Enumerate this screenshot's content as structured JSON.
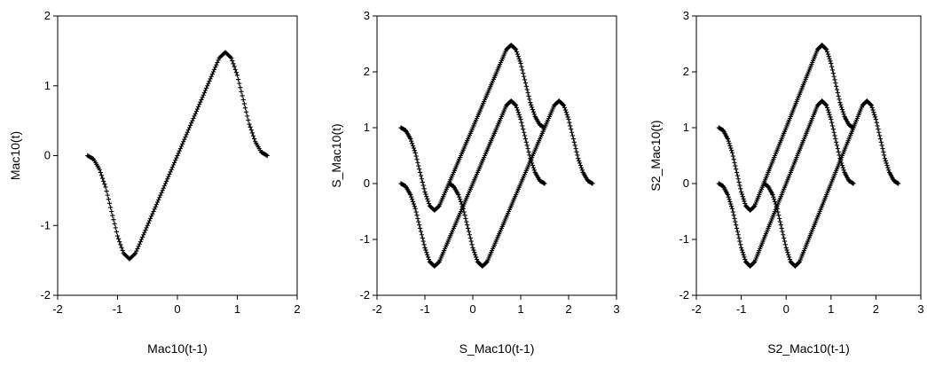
{
  "chart_data": [
    {
      "type": "scatter",
      "title": "",
      "xlabel": "Mac10(t-1)",
      "ylabel": "Mac10(t)",
      "xlim": [
        -2,
        2
      ],
      "ylim": [
        -2,
        2
      ],
      "xticks": [
        -2,
        -1,
        0,
        1,
        2
      ],
      "yticks": [
        -2,
        -1,
        0,
        1,
        2
      ],
      "grid": false,
      "marker": "plus",
      "series": [
        {
          "points": [
            [
              -1.5,
              0.0
            ],
            [
              -1.4,
              -0.05
            ],
            [
              -1.3,
              -0.2
            ],
            [
              -1.2,
              -0.45
            ],
            [
              -1.1,
              -0.8
            ],
            [
              -1.0,
              -1.15
            ],
            [
              -0.9,
              -1.4
            ],
            [
              -0.8,
              -1.48
            ],
            [
              -0.7,
              -1.4
            ],
            [
              -0.6,
              -1.2
            ],
            [
              -0.5,
              -1.0
            ],
            [
              -0.4,
              -0.8
            ],
            [
              -0.3,
              -0.6
            ],
            [
              -0.2,
              -0.4
            ],
            [
              -0.1,
              -0.2
            ],
            [
              0.0,
              0.0
            ],
            [
              0.1,
              0.2
            ],
            [
              0.2,
              0.4
            ],
            [
              0.3,
              0.6
            ],
            [
              0.4,
              0.8
            ],
            [
              0.5,
              1.0
            ],
            [
              0.6,
              1.2
            ],
            [
              0.7,
              1.4
            ],
            [
              0.8,
              1.48
            ],
            [
              0.9,
              1.4
            ],
            [
              1.0,
              1.15
            ],
            [
              1.1,
              0.8
            ],
            [
              1.2,
              0.45
            ],
            [
              1.3,
              0.2
            ],
            [
              1.4,
              0.05
            ],
            [
              1.5,
              0.0
            ]
          ]
        }
      ]
    },
    {
      "type": "scatter",
      "title": "",
      "xlabel": "S_Mac10(t-1)",
      "ylabel": "S_Mac10(t)",
      "xlim": [
        -2,
        3
      ],
      "ylim": [
        -2,
        3
      ],
      "xticks": [
        -2,
        -1,
        0,
        1,
        2,
        3
      ],
      "yticks": [
        -2,
        -1,
        0,
        1,
        2,
        3
      ],
      "grid": false,
      "marker": "plus",
      "series": [
        {
          "points": [
            [
              -1.5,
              0.0
            ],
            [
              -1.4,
              -0.05
            ],
            [
              -1.3,
              -0.2
            ],
            [
              -1.2,
              -0.45
            ],
            [
              -1.1,
              -0.8
            ],
            [
              -1.0,
              -1.15
            ],
            [
              -0.9,
              -1.4
            ],
            [
              -0.8,
              -1.48
            ],
            [
              -0.7,
              -1.4
            ],
            [
              -0.6,
              -1.2
            ],
            [
              -0.5,
              -1.0
            ],
            [
              -0.4,
              -0.8
            ],
            [
              -0.3,
              -0.6
            ],
            [
              -0.2,
              -0.4
            ],
            [
              -0.1,
              -0.2
            ],
            [
              0.0,
              0.0
            ],
            [
              0.1,
              0.2
            ],
            [
              0.2,
              0.4
            ],
            [
              0.3,
              0.6
            ],
            [
              0.4,
              0.8
            ],
            [
              0.5,
              1.0
            ],
            [
              0.6,
              1.2
            ],
            [
              0.7,
              1.4
            ],
            [
              0.8,
              1.48
            ],
            [
              0.9,
              1.4
            ],
            [
              1.0,
              1.15
            ],
            [
              1.1,
              0.8
            ],
            [
              1.2,
              0.45
            ],
            [
              1.3,
              0.2
            ],
            [
              1.4,
              0.05
            ],
            [
              1.5,
              0.0
            ]
          ]
        },
        {
          "points": [
            [
              -1.5,
              1.0
            ],
            [
              -1.4,
              0.95
            ],
            [
              -1.3,
              0.8
            ],
            [
              -1.2,
              0.55
            ],
            [
              -1.1,
              0.2
            ],
            [
              -1.0,
              -0.15
            ],
            [
              -0.9,
              -0.4
            ],
            [
              -0.8,
              -0.48
            ],
            [
              -0.7,
              -0.4
            ],
            [
              -0.6,
              -0.2
            ],
            [
              -0.5,
              0.0
            ],
            [
              -0.4,
              0.2
            ],
            [
              -0.3,
              0.4
            ],
            [
              -0.2,
              0.6
            ],
            [
              -0.1,
              0.8
            ],
            [
              0.0,
              1.0
            ],
            [
              0.1,
              1.2
            ],
            [
              0.2,
              1.4
            ],
            [
              0.3,
              1.6
            ],
            [
              0.4,
              1.8
            ],
            [
              0.5,
              2.0
            ],
            [
              0.6,
              2.2
            ],
            [
              0.7,
              2.4
            ],
            [
              0.8,
              2.48
            ],
            [
              0.9,
              2.4
            ],
            [
              1.0,
              2.15
            ],
            [
              1.1,
              1.8
            ],
            [
              1.2,
              1.45
            ],
            [
              1.3,
              1.2
            ],
            [
              1.4,
              1.05
            ],
            [
              1.5,
              1.0
            ]
          ]
        },
        {
          "points": [
            [
              -0.5,
              0.0
            ],
            [
              -0.4,
              -0.05
            ],
            [
              -0.3,
              -0.2
            ],
            [
              -0.2,
              -0.45
            ],
            [
              -0.1,
              -0.8
            ],
            [
              0.0,
              -1.15
            ],
            [
              0.1,
              -1.4
            ],
            [
              0.2,
              -1.48
            ],
            [
              0.3,
              -1.4
            ],
            [
              0.4,
              -1.2
            ],
            [
              0.5,
              -1.0
            ],
            [
              0.6,
              -0.8
            ],
            [
              0.7,
              -0.6
            ],
            [
              0.8,
              -0.4
            ],
            [
              0.9,
              -0.2
            ],
            [
              1.0,
              0.0
            ],
            [
              1.1,
              0.2
            ],
            [
              1.2,
              0.4
            ],
            [
              1.3,
              0.6
            ],
            [
              1.4,
              0.8
            ],
            [
              1.5,
              1.0
            ],
            [
              1.6,
              1.2
            ],
            [
              1.7,
              1.4
            ],
            [
              1.8,
              1.48
            ],
            [
              1.9,
              1.4
            ],
            [
              2.0,
              1.15
            ],
            [
              2.1,
              0.8
            ],
            [
              2.2,
              0.45
            ],
            [
              2.3,
              0.2
            ],
            [
              2.4,
              0.05
            ],
            [
              2.5,
              0.0
            ]
          ]
        }
      ]
    },
    {
      "type": "scatter",
      "title": "",
      "xlabel": "S2_Mac10(t-1)",
      "ylabel": "S2_Mac10(t)",
      "xlim": [
        -2,
        3
      ],
      "ylim": [
        -2,
        3
      ],
      "xticks": [
        -2,
        -1,
        0,
        1,
        2,
        3
      ],
      "yticks": [
        -2,
        -1,
        0,
        1,
        2,
        3
      ],
      "grid": false,
      "marker": "plus",
      "series": [
        {
          "points": [
            [
              -1.5,
              0.0
            ],
            [
              -1.4,
              -0.05
            ],
            [
              -1.3,
              -0.2
            ],
            [
              -1.2,
              -0.45
            ],
            [
              -1.1,
              -0.8
            ],
            [
              -1.0,
              -1.15
            ],
            [
              -0.9,
              -1.4
            ],
            [
              -0.8,
              -1.48
            ],
            [
              -0.7,
              -1.4
            ],
            [
              -0.6,
              -1.2
            ],
            [
              -0.5,
              -1.0
            ],
            [
              -0.4,
              -0.8
            ],
            [
              -0.3,
              -0.6
            ],
            [
              -0.2,
              -0.4
            ],
            [
              -0.1,
              -0.2
            ],
            [
              0.0,
              0.0
            ],
            [
              0.1,
              0.2
            ],
            [
              0.2,
              0.4
            ],
            [
              0.3,
              0.6
            ],
            [
              0.4,
              0.8
            ],
            [
              0.5,
              1.0
            ],
            [
              0.6,
              1.2
            ],
            [
              0.7,
              1.4
            ],
            [
              0.8,
              1.48
            ],
            [
              0.9,
              1.4
            ],
            [
              1.0,
              1.15
            ],
            [
              1.1,
              0.8
            ],
            [
              1.2,
              0.45
            ],
            [
              1.3,
              0.2
            ],
            [
              1.4,
              0.05
            ],
            [
              1.5,
              0.0
            ]
          ]
        },
        {
          "points": [
            [
              -1.5,
              1.0
            ],
            [
              -1.4,
              0.95
            ],
            [
              -1.3,
              0.8
            ],
            [
              -1.2,
              0.55
            ],
            [
              -1.1,
              0.2
            ],
            [
              -1.0,
              -0.15
            ],
            [
              -0.9,
              -0.4
            ],
            [
              -0.8,
              -0.48
            ],
            [
              -0.7,
              -0.4
            ],
            [
              -0.6,
              -0.2
            ],
            [
              -0.5,
              0.0
            ],
            [
              -0.4,
              0.2
            ],
            [
              -0.3,
              0.4
            ],
            [
              -0.2,
              0.6
            ],
            [
              -0.1,
              0.8
            ],
            [
              0.0,
              1.0
            ],
            [
              0.1,
              1.2
            ],
            [
              0.2,
              1.4
            ],
            [
              0.3,
              1.6
            ],
            [
              0.4,
              1.8
            ],
            [
              0.5,
              2.0
            ],
            [
              0.6,
              2.2
            ],
            [
              0.7,
              2.4
            ],
            [
              0.8,
              2.48
            ],
            [
              0.9,
              2.4
            ],
            [
              1.0,
              2.15
            ],
            [
              1.1,
              1.8
            ],
            [
              1.2,
              1.45
            ],
            [
              1.3,
              1.2
            ],
            [
              1.4,
              1.05
            ],
            [
              1.5,
              1.0
            ]
          ]
        },
        {
          "points": [
            [
              -0.5,
              0.0
            ],
            [
              -0.4,
              -0.05
            ],
            [
              -0.3,
              -0.2
            ],
            [
              -0.2,
              -0.45
            ],
            [
              -0.1,
              -0.8
            ],
            [
              0.0,
              -1.15
            ],
            [
              0.1,
              -1.4
            ],
            [
              0.2,
              -1.48
            ],
            [
              0.3,
              -1.4
            ],
            [
              0.4,
              -1.2
            ],
            [
              0.5,
              -1.0
            ],
            [
              0.6,
              -0.8
            ],
            [
              0.7,
              -0.6
            ],
            [
              0.8,
              -0.4
            ],
            [
              0.9,
              -0.2
            ],
            [
              1.0,
              0.0
            ],
            [
              1.1,
              0.2
            ],
            [
              1.2,
              0.4
            ],
            [
              1.3,
              0.6
            ],
            [
              1.4,
              0.8
            ],
            [
              1.5,
              1.0
            ],
            [
              1.6,
              1.2
            ],
            [
              1.7,
              1.4
            ],
            [
              1.8,
              1.48
            ],
            [
              1.9,
              1.4
            ],
            [
              2.0,
              1.15
            ],
            [
              2.1,
              0.8
            ],
            [
              2.2,
              0.45
            ],
            [
              2.3,
              0.2
            ],
            [
              2.4,
              0.05
            ],
            [
              2.5,
              0.0
            ]
          ]
        }
      ]
    }
  ]
}
